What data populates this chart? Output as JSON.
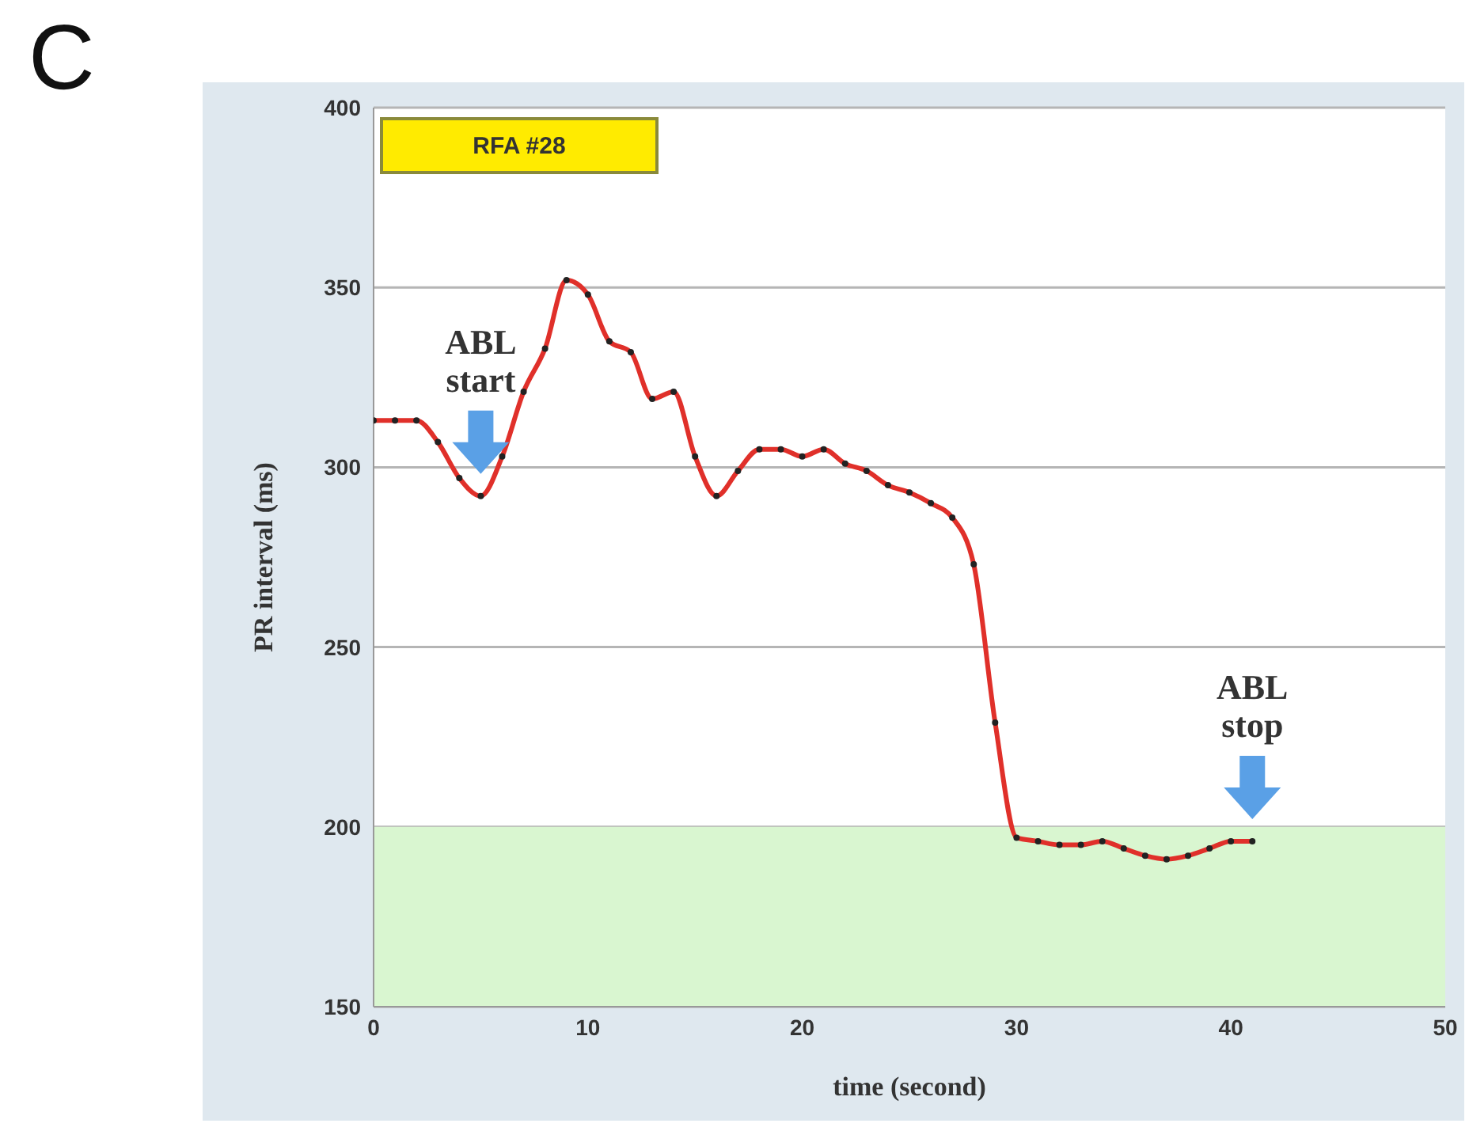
{
  "chart_data": {
    "type": "line",
    "title": "C",
    "xlabel": "time (second)",
    "ylabel": "PR interval (ms)",
    "x": [
      0,
      1,
      2,
      3,
      4,
      5,
      6,
      7,
      8,
      9,
      10,
      11,
      12,
      13,
      14,
      15,
      16,
      17,
      18,
      19,
      20,
      21,
      22,
      23,
      24,
      25,
      26,
      27,
      28,
      29,
      30,
      31,
      32,
      33,
      34,
      35,
      36,
      37,
      38,
      39,
      40,
      41
    ],
    "series": [
      {
        "color": "#e0302a",
        "values": [
          313,
          313,
          313,
          307,
          297,
          292,
          303,
          321,
          333,
          352,
          348,
          335,
          332,
          319,
          321,
          303,
          292,
          299,
          305,
          305,
          303,
          305,
          301,
          299,
          295,
          293,
          290,
          286,
          273,
          229,
          197,
          196,
          195,
          195,
          196,
          194,
          192,
          191,
          192,
          194,
          196,
          196
        ]
      }
    ],
    "xlim": [
      0,
      50
    ],
    "xticks": [
      0,
      10,
      20,
      30,
      40,
      50
    ],
    "ylim": [
      150,
      400
    ],
    "yticks": [
      150,
      200,
      250,
      300,
      350,
      400
    ],
    "grid": "y",
    "marker": "circle",
    "line_style": "solid",
    "legend": false,
    "bands": [
      {
        "axis": "y",
        "from": 150,
        "to": 200,
        "color": "#d9f6d0"
      }
    ],
    "annotations": [
      "RFA #28",
      {
        "text": "ABL start",
        "x": 5,
        "y": 292
      },
      {
        "text": "ABL stop",
        "x": 41,
        "y": 196
      }
    ]
  }
}
